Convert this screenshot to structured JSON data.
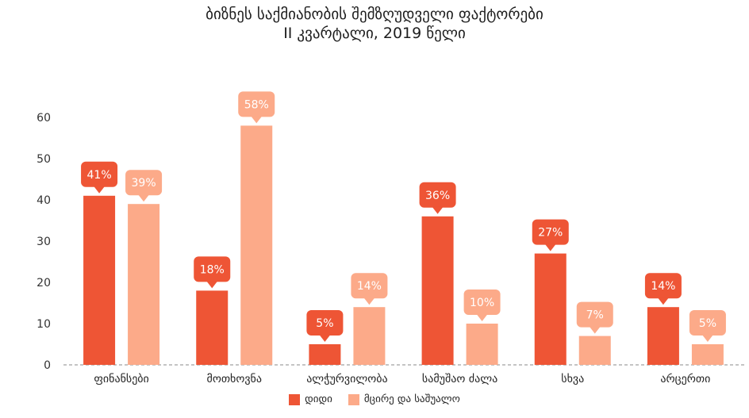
{
  "chart_data": {
    "type": "bar",
    "title": "ბიზნეს საქმიანობის შემზღუდველი ფაქტორები",
    "subtitle": "II კვარტალი, 2019 წელი",
    "categories": [
      "ფინანსები",
      "მოთხოვნა",
      "ალჭურვილობა",
      "სამუშაო ძალა",
      "სხვა",
      "არცერთი"
    ],
    "series": [
      {
        "name": "დიდი",
        "values": [
          41,
          18,
          5,
          36,
          27,
          14
        ],
        "color": "#ee5535",
        "labels": [
          "41%",
          "18%",
          "5%",
          "36%",
          "27%",
          "14%"
        ]
      },
      {
        "name": "მცირე და საშუალო",
        "values": [
          39,
          58,
          14,
          10,
          7,
          5
        ],
        "color": "#fcaa89",
        "labels": [
          "39%",
          "58%",
          "14%",
          "10%",
          "7%",
          "5%"
        ]
      }
    ],
    "ylim": [
      0,
      60
    ],
    "yticks": [
      "0",
      "10",
      "20",
      "30",
      "40",
      "50",
      "60"
    ],
    "grid": false,
    "legend_position": "bottom"
  }
}
